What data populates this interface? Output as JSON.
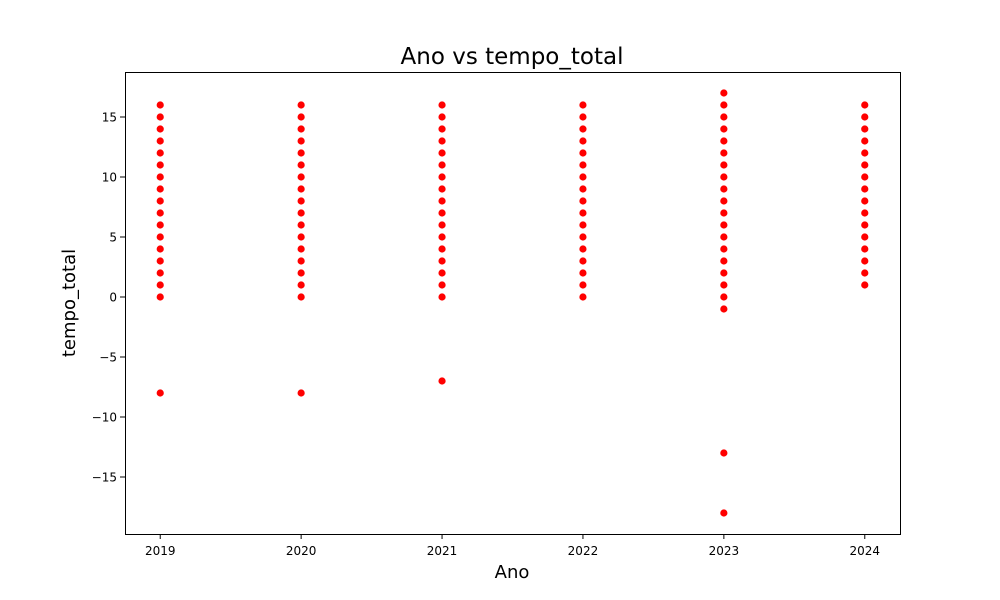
{
  "chart_data": {
    "type": "scatter",
    "title": "Ano vs tempo_total",
    "xlabel": "Ano",
    "ylabel": "tempo_total",
    "x_ticks": [
      2019,
      2020,
      2021,
      2022,
      2023,
      2024
    ],
    "y_ticks": [
      -15,
      -10,
      -5,
      0,
      5,
      10,
      15
    ],
    "xlim": [
      2018.75,
      2024.25
    ],
    "ylim": [
      -19.75,
      18.75
    ],
    "grid": false,
    "marker_color": "#ff0000",
    "series": [
      {
        "points": [
          {
            "x": 2019,
            "y": -8
          },
          {
            "x": 2019,
            "y": 0
          },
          {
            "x": 2019,
            "y": 1
          },
          {
            "x": 2019,
            "y": 2
          },
          {
            "x": 2019,
            "y": 3
          },
          {
            "x": 2019,
            "y": 4
          },
          {
            "x": 2019,
            "y": 5
          },
          {
            "x": 2019,
            "y": 6
          },
          {
            "x": 2019,
            "y": 7
          },
          {
            "x": 2019,
            "y": 8
          },
          {
            "x": 2019,
            "y": 9
          },
          {
            "x": 2019,
            "y": 10
          },
          {
            "x": 2019,
            "y": 11
          },
          {
            "x": 2019,
            "y": 12
          },
          {
            "x": 2019,
            "y": 13
          },
          {
            "x": 2019,
            "y": 14
          },
          {
            "x": 2019,
            "y": 15
          },
          {
            "x": 2019,
            "y": 16
          },
          {
            "x": 2020,
            "y": -8
          },
          {
            "x": 2020,
            "y": 0
          },
          {
            "x": 2020,
            "y": 1
          },
          {
            "x": 2020,
            "y": 2
          },
          {
            "x": 2020,
            "y": 3
          },
          {
            "x": 2020,
            "y": 4
          },
          {
            "x": 2020,
            "y": 5
          },
          {
            "x": 2020,
            "y": 6
          },
          {
            "x": 2020,
            "y": 7
          },
          {
            "x": 2020,
            "y": 8
          },
          {
            "x": 2020,
            "y": 9
          },
          {
            "x": 2020,
            "y": 10
          },
          {
            "x": 2020,
            "y": 11
          },
          {
            "x": 2020,
            "y": 12
          },
          {
            "x": 2020,
            "y": 13
          },
          {
            "x": 2020,
            "y": 14
          },
          {
            "x": 2020,
            "y": 15
          },
          {
            "x": 2020,
            "y": 16
          },
          {
            "x": 2021,
            "y": -7
          },
          {
            "x": 2021,
            "y": 0
          },
          {
            "x": 2021,
            "y": 1
          },
          {
            "x": 2021,
            "y": 2
          },
          {
            "x": 2021,
            "y": 3
          },
          {
            "x": 2021,
            "y": 4
          },
          {
            "x": 2021,
            "y": 5
          },
          {
            "x": 2021,
            "y": 6
          },
          {
            "x": 2021,
            "y": 7
          },
          {
            "x": 2021,
            "y": 8
          },
          {
            "x": 2021,
            "y": 9
          },
          {
            "x": 2021,
            "y": 10
          },
          {
            "x": 2021,
            "y": 11
          },
          {
            "x": 2021,
            "y": 12
          },
          {
            "x": 2021,
            "y": 13
          },
          {
            "x": 2021,
            "y": 14
          },
          {
            "x": 2021,
            "y": 15
          },
          {
            "x": 2021,
            "y": 16
          },
          {
            "x": 2022,
            "y": 0
          },
          {
            "x": 2022,
            "y": 1
          },
          {
            "x": 2022,
            "y": 2
          },
          {
            "x": 2022,
            "y": 3
          },
          {
            "x": 2022,
            "y": 4
          },
          {
            "x": 2022,
            "y": 5
          },
          {
            "x": 2022,
            "y": 6
          },
          {
            "x": 2022,
            "y": 7
          },
          {
            "x": 2022,
            "y": 8
          },
          {
            "x": 2022,
            "y": 9
          },
          {
            "x": 2022,
            "y": 10
          },
          {
            "x": 2022,
            "y": 11
          },
          {
            "x": 2022,
            "y": 12
          },
          {
            "x": 2022,
            "y": 13
          },
          {
            "x": 2022,
            "y": 14
          },
          {
            "x": 2022,
            "y": 15
          },
          {
            "x": 2022,
            "y": 16
          },
          {
            "x": 2023,
            "y": -18
          },
          {
            "x": 2023,
            "y": -13
          },
          {
            "x": 2023,
            "y": -1
          },
          {
            "x": 2023,
            "y": 0
          },
          {
            "x": 2023,
            "y": 1
          },
          {
            "x": 2023,
            "y": 2
          },
          {
            "x": 2023,
            "y": 3
          },
          {
            "x": 2023,
            "y": 4
          },
          {
            "x": 2023,
            "y": 5
          },
          {
            "x": 2023,
            "y": 6
          },
          {
            "x": 2023,
            "y": 7
          },
          {
            "x": 2023,
            "y": 8
          },
          {
            "x": 2023,
            "y": 9
          },
          {
            "x": 2023,
            "y": 10
          },
          {
            "x": 2023,
            "y": 11
          },
          {
            "x": 2023,
            "y": 12
          },
          {
            "x": 2023,
            "y": 13
          },
          {
            "x": 2023,
            "y": 14
          },
          {
            "x": 2023,
            "y": 15
          },
          {
            "x": 2023,
            "y": 16
          },
          {
            "x": 2023,
            "y": 17
          },
          {
            "x": 2024,
            "y": 1
          },
          {
            "x": 2024,
            "y": 2
          },
          {
            "x": 2024,
            "y": 3
          },
          {
            "x": 2024,
            "y": 4
          },
          {
            "x": 2024,
            "y": 5
          },
          {
            "x": 2024,
            "y": 6
          },
          {
            "x": 2024,
            "y": 7
          },
          {
            "x": 2024,
            "y": 8
          },
          {
            "x": 2024,
            "y": 9
          },
          {
            "x": 2024,
            "y": 10
          },
          {
            "x": 2024,
            "y": 11
          },
          {
            "x": 2024,
            "y": 12
          },
          {
            "x": 2024,
            "y": 13
          },
          {
            "x": 2024,
            "y": 14
          },
          {
            "x": 2024,
            "y": 15
          },
          {
            "x": 2024,
            "y": 16
          }
        ]
      }
    ]
  }
}
